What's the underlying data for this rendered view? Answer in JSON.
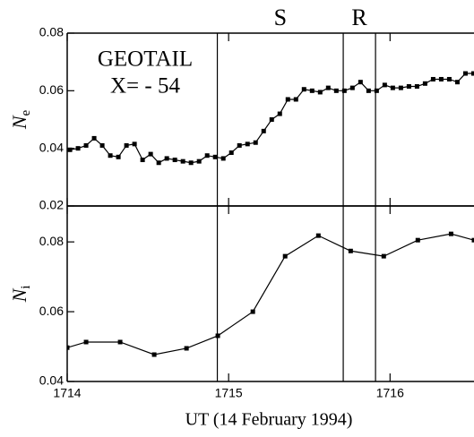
{
  "chart_data": [
    {
      "type": "line",
      "ylabel": "N",
      "ylabel_sub": "e",
      "annotations": [
        "GEOTAIL",
        "X= - 54"
      ],
      "region_labels": [
        "S",
        "R"
      ],
      "vlines": [
        1714.93,
        1715.71,
        1715.91
      ],
      "color": "#000000",
      "x": [
        1714.017,
        1714.067,
        1714.117,
        1714.167,
        1714.217,
        1714.267,
        1714.317,
        1714.367,
        1714.417,
        1714.467,
        1714.517,
        1714.567,
        1714.617,
        1714.667,
        1714.717,
        1714.767,
        1714.817,
        1714.867,
        1714.917,
        1714.967,
        1715.017,
        1715.067,
        1715.117,
        1715.167,
        1715.217,
        1715.267,
        1715.317,
        1715.367,
        1715.417,
        1715.467,
        1715.517,
        1715.567,
        1715.617,
        1715.667,
        1715.717,
        1715.767,
        1715.817,
        1715.867,
        1715.917,
        1715.967,
        1716.017,
        1716.067,
        1716.117,
        1716.167,
        1716.217,
        1716.267,
        1716.317,
        1716.367,
        1716.417,
        1716.467,
        1716.517
      ],
      "values": [
        0.0395,
        0.04,
        0.041,
        0.0435,
        0.041,
        0.0375,
        0.037,
        0.041,
        0.0415,
        0.036,
        0.038,
        0.035,
        0.0365,
        0.036,
        0.0355,
        0.035,
        0.0355,
        0.0375,
        0.037,
        0.0365,
        0.0385,
        0.041,
        0.0415,
        0.042,
        0.046,
        0.05,
        0.052,
        0.057,
        0.057,
        0.0605,
        0.06,
        0.0595,
        0.061,
        0.06,
        0.06,
        0.061,
        0.063,
        0.06,
        0.06,
        0.062,
        0.061,
        0.061,
        0.0615,
        0.0615,
        0.0625,
        0.064,
        0.064,
        0.064,
        0.063,
        0.066,
        0.066
      ],
      "xlim": [
        1714,
        1716.52
      ],
      "xticks": [
        1714,
        1715,
        1716
      ],
      "ylim": [
        0.02,
        0.08
      ],
      "yticks": [
        0.02,
        0.04,
        0.06,
        0.08
      ]
    },
    {
      "type": "line",
      "ylabel": "N",
      "ylabel_sub": "i",
      "xlabel": "UT (14 February 1994)",
      "vlines": [
        1714.93,
        1715.71,
        1715.91
      ],
      "color": "#000000",
      "x": [
        1714.0,
        1714.117,
        1714.328,
        1714.539,
        1714.739,
        1714.933,
        1715.15,
        1715.35,
        1715.556,
        1715.756,
        1715.961,
        1716.172,
        1716.378,
        1716.52
      ],
      "values": [
        0.0497,
        0.0513,
        0.0513,
        0.0477,
        0.0495,
        0.0531,
        0.06,
        0.0759,
        0.0818,
        0.0774,
        0.0759,
        0.0805,
        0.0823,
        0.0805
      ],
      "xlim": [
        1714,
        1716.52
      ],
      "xticks": [
        1714,
        1715,
        1716
      ],
      "ylim": [
        0.04,
        0.0903
      ],
      "yticks": [
        0.04,
        0.06,
        0.08
      ]
    }
  ]
}
